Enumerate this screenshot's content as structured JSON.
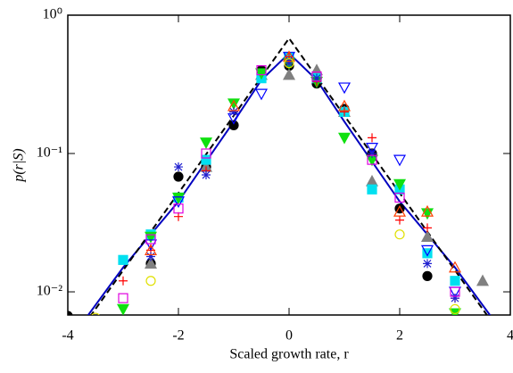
{
  "chart_data": {
    "type": "scatter",
    "xlabel": "Scaled growth rate, r",
    "ylabel": "p(r|S)",
    "xlim": [
      -4,
      4
    ],
    "xticks": [
      -4,
      -2,
      0,
      2,
      4
    ],
    "ylim": [
      0.0068,
      1
    ],
    "log_y": true,
    "yticks": [
      {
        "value": 1,
        "label": "10⁰"
      },
      {
        "value": 0.1,
        "label": "10⁻¹"
      },
      {
        "value": 0.01,
        "label": "10⁻²"
      }
    ],
    "series": [
      {
        "color": "#000000",
        "marker": "circle",
        "filled": true,
        "x": [
          -4,
          -2.5,
          -2,
          -1.5,
          -1,
          -0.5,
          0,
          0.5,
          1,
          1.5,
          2,
          2.5
        ],
        "values": [
          0.0067,
          0.016,
          0.068,
          0.08,
          0.16,
          0.4,
          0.43,
          0.32,
          0.21,
          0.1,
          0.04,
          0.013
        ]
      },
      {
        "color": "#808080",
        "marker": "triangle",
        "filled": true,
        "x": [
          -3.5,
          -2.5,
          -1.5,
          -0.5,
          0,
          0.5,
          1,
          1.5,
          2.5,
          3,
          3.5
        ],
        "values": [
          0.006,
          0.016,
          0.08,
          0.37,
          0.37,
          0.4,
          0.2,
          0.063,
          0.025,
          0.006,
          0.012
        ]
      },
      {
        "color": "#00e0f0",
        "marker": "square",
        "filled": true,
        "x": [
          -3,
          -2.5,
          -2,
          -1.5,
          -0.5,
          0,
          0.5,
          1,
          1.5,
          2,
          2.5,
          3
        ],
        "values": [
          0.017,
          0.026,
          0.048,
          0.09,
          0.35,
          0.5,
          0.35,
          0.2,
          0.055,
          0.055,
          0.019,
          0.012
        ]
      },
      {
        "color": "#10e010",
        "marker": "down-triangle",
        "filled": true,
        "x": [
          -3,
          -2.5,
          -2,
          -1.5,
          -1,
          -0.5,
          0,
          0.5,
          1,
          1.5,
          2,
          2.5,
          3
        ],
        "values": [
          0.0075,
          0.025,
          0.048,
          0.12,
          0.23,
          0.38,
          0.45,
          0.33,
          0.13,
          0.09,
          0.06,
          0.037,
          0.007
        ]
      },
      {
        "color": "#ff0000",
        "marker": "plus",
        "filled": false,
        "x": [
          -3,
          -2.5,
          -2,
          -1.5,
          -1,
          0,
          0.5,
          1,
          1.5,
          2,
          2.5,
          3
        ],
        "values": [
          0.012,
          0.02,
          0.035,
          0.075,
          0.2,
          0.5,
          0.33,
          0.2,
          0.13,
          0.033,
          0.029,
          0.009
        ]
      },
      {
        "color": "#0000ff",
        "marker": "down-triangle",
        "filled": false,
        "x": [
          -2.5,
          -2,
          -1,
          -0.5,
          0,
          1,
          1.5,
          2,
          2.5,
          3
        ],
        "values": [
          0.022,
          0.045,
          0.18,
          0.27,
          0.5,
          0.3,
          0.11,
          0.09,
          0.02,
          0.01
        ]
      },
      {
        "color": "#2020d0",
        "marker": "asterisk",
        "filled": false,
        "x": [
          -3.5,
          -2.5,
          -2,
          -1.5,
          -1,
          0,
          0.5,
          1.5,
          2.5,
          3
        ],
        "values": [
          0.006,
          0.018,
          0.08,
          0.07,
          0.2,
          0.45,
          0.35,
          0.1,
          0.016,
          0.009
        ]
      },
      {
        "color": "#ff4000",
        "marker": "triangle",
        "filled": false,
        "x": [
          -2.5,
          -1,
          0,
          1,
          2,
          2.5,
          3
        ],
        "values": [
          0.02,
          0.22,
          0.5,
          0.22,
          0.038,
          0.038,
          0.015
        ]
      },
      {
        "color": "#e0e000",
        "marker": "circle",
        "filled": false,
        "x": [
          -3.5,
          -2.5,
          0,
          2,
          3,
          3.5
        ],
        "values": [
          0.0065,
          0.012,
          0.45,
          0.026,
          0.0075,
          0.0055
        ]
      },
      {
        "color": "#e000e0",
        "marker": "square",
        "filled": false,
        "x": [
          -3,
          -2.5,
          -2,
          -1.5,
          -0.5,
          0.5,
          1.5,
          2,
          3
        ],
        "values": [
          0.009,
          0.024,
          0.04,
          0.1,
          0.4,
          0.36,
          0.09,
          0.048,
          0.01
        ]
      }
    ],
    "lines": [
      {
        "color": "#0000c0",
        "dash": false,
        "x": [
          -3.8,
          -3,
          -2,
          -1,
          -0.5,
          0,
          0.5,
          1,
          2,
          3,
          3.8
        ],
        "values": [
          0.0055,
          0.015,
          0.045,
          0.17,
          0.34,
          0.53,
          0.34,
          0.17,
          0.045,
          0.015,
          0.0055
        ]
      },
      {
        "color": "#000000",
        "dash": true,
        "x": [
          -3.6,
          0,
          3.6
        ],
        "values": [
          0.0066,
          0.68,
          0.0066
        ]
      }
    ]
  }
}
